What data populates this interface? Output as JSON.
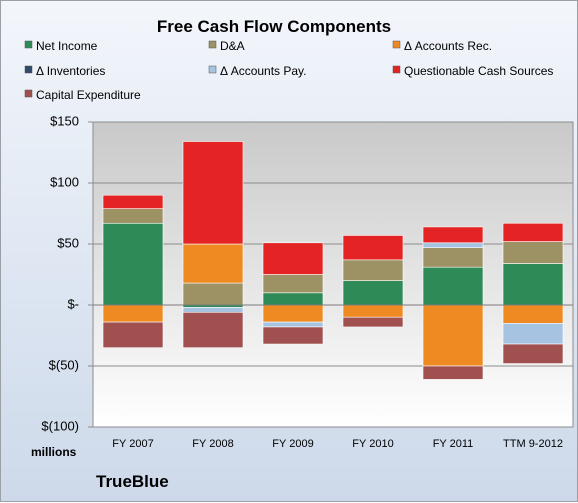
{
  "chart_data": {
    "type": "bar",
    "stacked": true,
    "title": "Free Cash Flow Components",
    "unit_label": "millions",
    "company": "TrueBlue",
    "categories": [
      "FY 2007",
      "FY 2008",
      "FY 2009",
      "FY 2010",
      "FY 2011",
      "TTM 9-2012"
    ],
    "ylim": [
      -100,
      150
    ],
    "yticks": [
      {
        "value": 150,
        "label": "$150"
      },
      {
        "value": 100,
        "label": "$100"
      },
      {
        "value": 50,
        "label": "$50"
      },
      {
        "value": 0,
        "label": "$-"
      },
      {
        "value": -50,
        "label": "$(50)"
      },
      {
        "value": -100,
        "label": "$(100)"
      }
    ],
    "grid": true,
    "legend_position": "top",
    "series": [
      {
        "name": "Net Income",
        "color": "#2e8b57",
        "values": [
          67,
          -2,
          10,
          20,
          31,
          34
        ]
      },
      {
        "name": "D&A",
        "color": "#9c9263",
        "values": [
          12,
          18,
          15,
          17,
          16,
          18
        ]
      },
      {
        "name": "Δ Accounts Rec.",
        "color": "#ef8a22",
        "values": [
          -14,
          32,
          -14,
          -10,
          -50,
          -15
        ]
      },
      {
        "name": "Δ Inventories",
        "color": "#2f4a6b",
        "values": [
          0,
          0,
          0,
          0,
          0,
          0
        ]
      },
      {
        "name": "Δ Accounts Pay.",
        "color": "#a6c4e2",
        "values": [
          0,
          -4,
          -4,
          0,
          4,
          -17
        ]
      },
      {
        "name": "Questionable Cash Sources",
        "color": "#e42424",
        "values": [
          11,
          84,
          26,
          20,
          13,
          15
        ]
      },
      {
        "name": "Capital Expenditure",
        "color": "#a0504f",
        "values": [
          -21,
          -29,
          -14,
          -8,
          -11,
          -16
        ]
      }
    ]
  }
}
